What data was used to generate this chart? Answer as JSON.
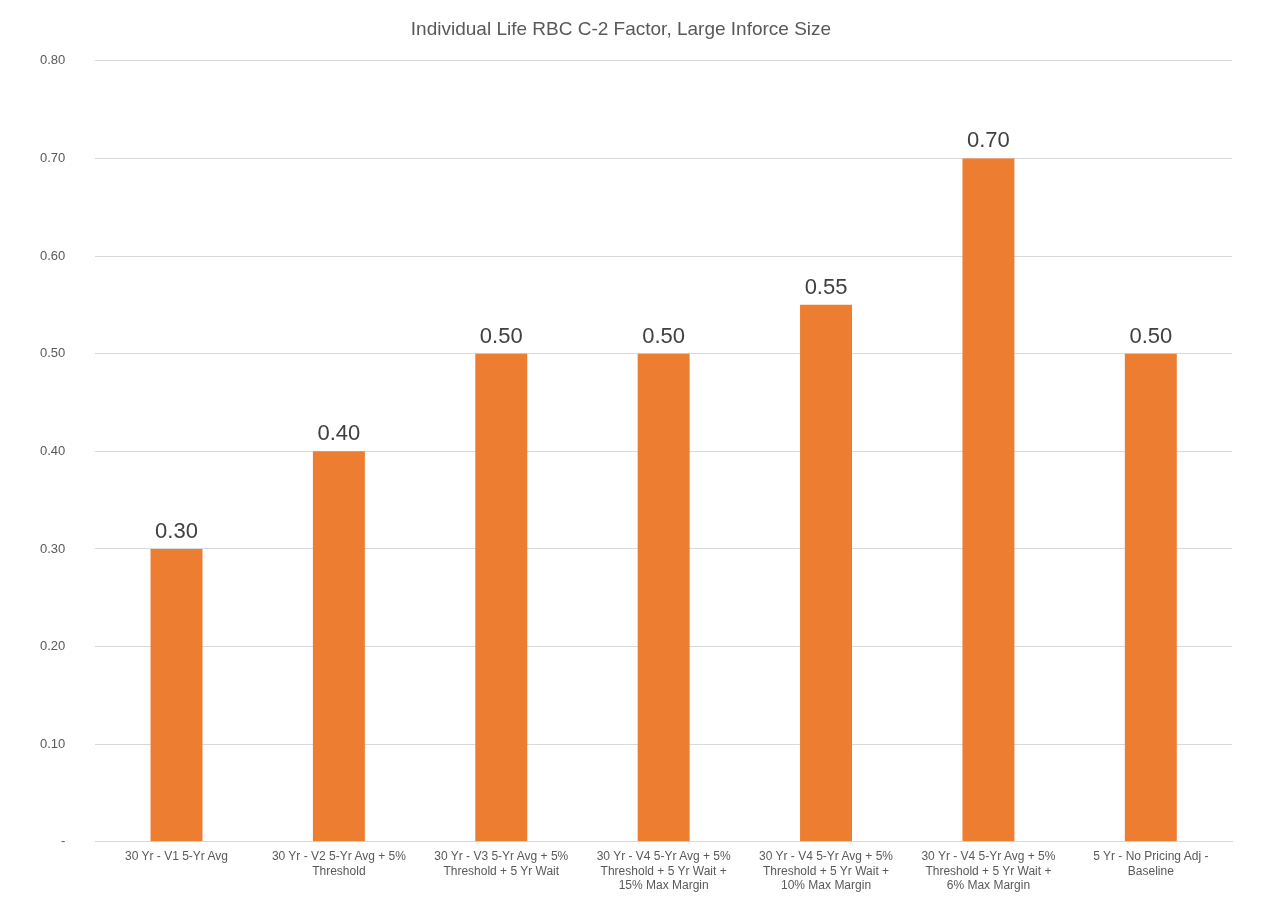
{
  "chart_data": {
    "type": "bar",
    "title": "Individual Life RBC C-2 Factor, Large Inforce Size",
    "categories": [
      "30 Yr - V1 5-Yr Avg",
      "30 Yr - V2 5-Yr Avg + 5% Threshold",
      "30 Yr - V3 5-Yr Avg + 5% Threshold + 5 Yr Wait",
      "30 Yr - V4 5-Yr Avg + 5% Threshold + 5 Yr Wait + 15% Max Margin",
      "30 Yr - V4 5-Yr Avg + 5% Threshold + 5 Yr Wait + 10% Max Margin",
      "30 Yr - V4 5-Yr Avg + 5% Threshold + 5 Yr Wait + 6% Max Margin",
      "5 Yr - No Pricing Adj - Baseline"
    ],
    "values": [
      0.3,
      0.4,
      0.5,
      0.5,
      0.55,
      0.7,
      0.5
    ],
    "value_labels": [
      "0.30",
      "0.40",
      "0.50",
      "0.50",
      "0.55",
      "0.70",
      "0.50"
    ],
    "color": "#ed7d31",
    "ylim": [
      0,
      0.8
    ],
    "yticks": [
      {
        "value": 0,
        "label": "-"
      },
      {
        "value": 0.1,
        "label": "0.10"
      },
      {
        "value": 0.2,
        "label": "0.20"
      },
      {
        "value": 0.3,
        "label": "0.30"
      },
      {
        "value": 0.4,
        "label": "0.40"
      },
      {
        "value": 0.5,
        "label": "0.50"
      },
      {
        "value": 0.6,
        "label": "0.60"
      },
      {
        "value": 0.7,
        "label": "0.70"
      },
      {
        "value": 0.8,
        "label": "0.80"
      }
    ],
    "grid": "y",
    "legend": false
  }
}
